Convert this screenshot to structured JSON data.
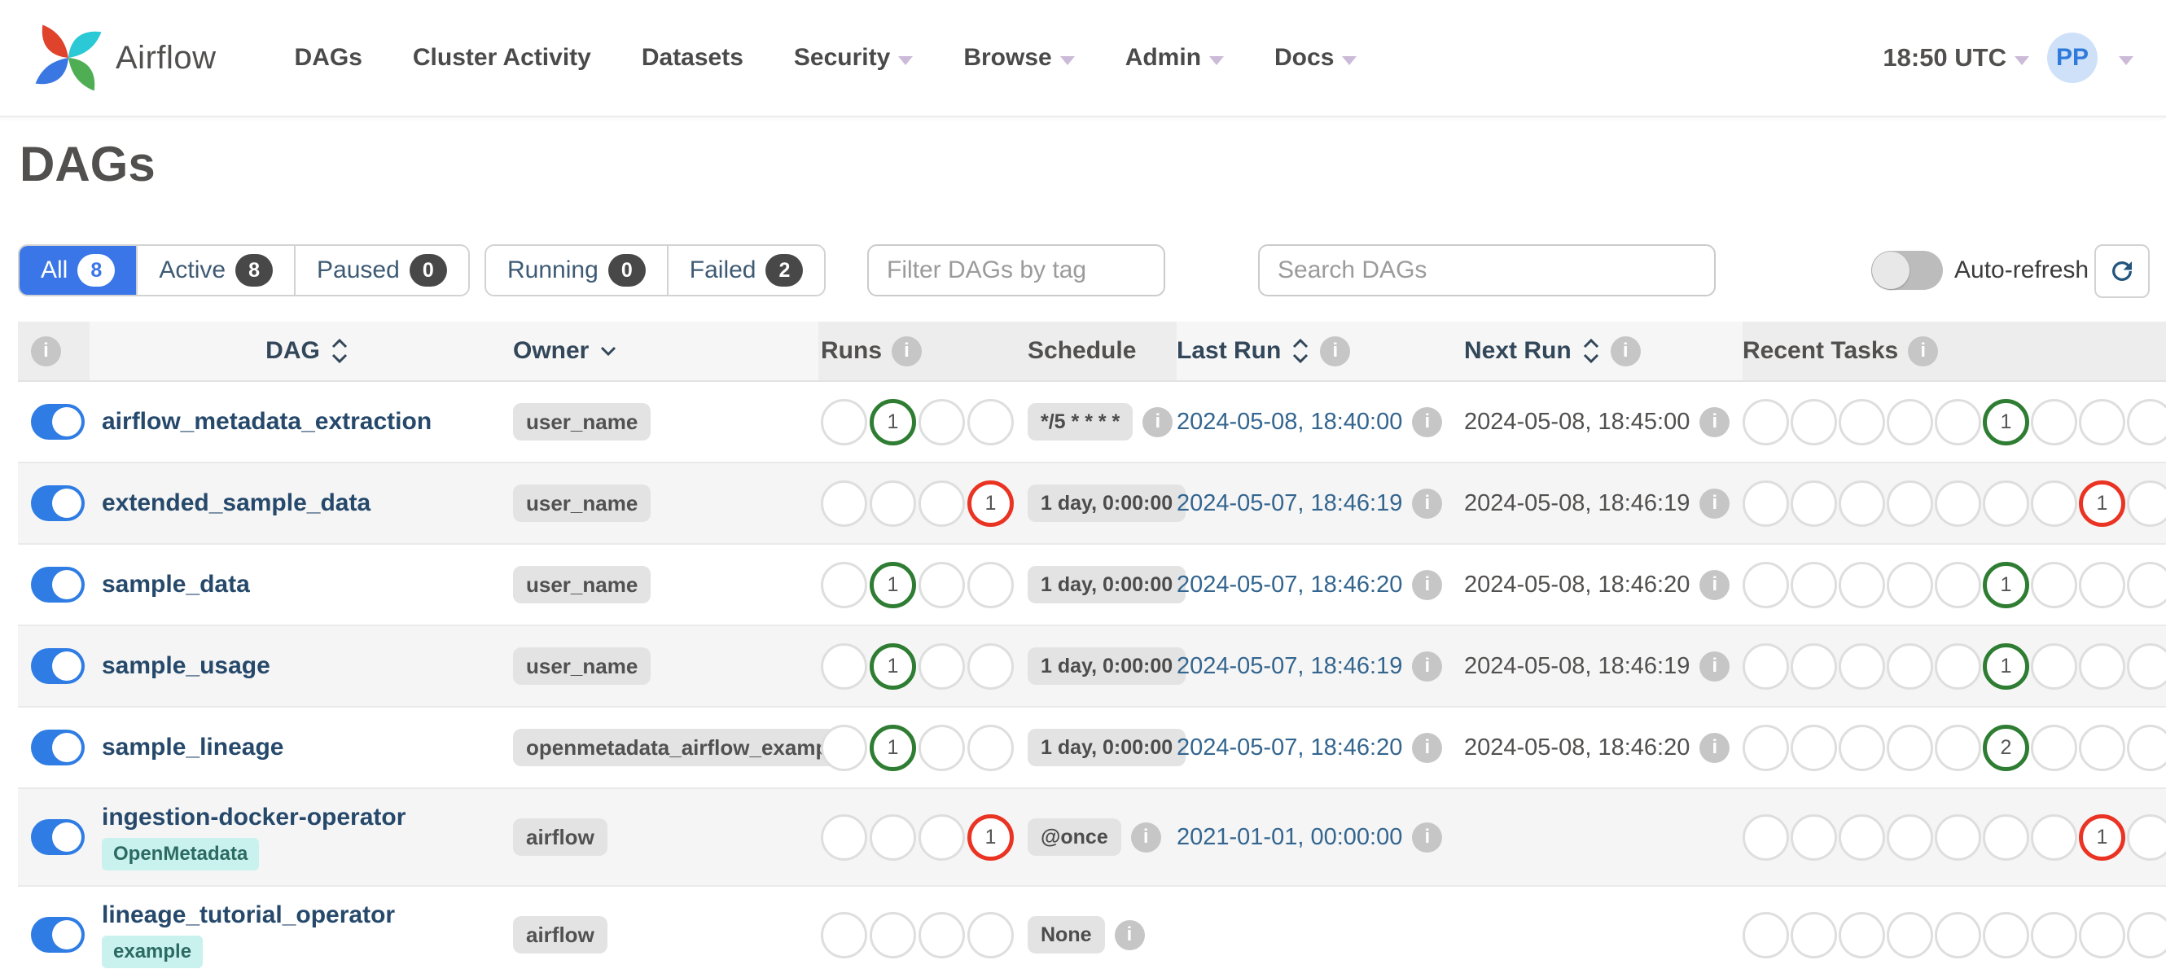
{
  "navbar": {
    "brand": "Airflow",
    "items": [
      {
        "label": "DAGs",
        "has_caret": false
      },
      {
        "label": "Cluster Activity",
        "has_caret": false
      },
      {
        "label": "Datasets",
        "has_caret": false
      },
      {
        "label": "Security",
        "has_caret": true
      },
      {
        "label": "Browse",
        "has_caret": true
      },
      {
        "label": "Admin",
        "has_caret": true
      },
      {
        "label": "Docs",
        "has_caret": true
      }
    ],
    "clock": "18:50 UTC",
    "avatar_initials": "PP"
  },
  "page": {
    "title": "DAGs"
  },
  "filters": {
    "state_group": [
      {
        "label": "All",
        "count": "8",
        "active": true
      },
      {
        "label": "Active",
        "count": "8",
        "active": false
      },
      {
        "label": "Paused",
        "count": "0",
        "active": false
      }
    ],
    "run_group": [
      {
        "label": "Running",
        "count": "0",
        "active": false
      },
      {
        "label": "Failed",
        "count": "2",
        "active": false
      }
    ],
    "tag_filter_placeholder": "Filter DAGs by tag",
    "search_placeholder": "Search DAGs",
    "auto_refresh_label": "Auto-refresh"
  },
  "table": {
    "headers": {
      "dag": "DAG",
      "owner": "Owner",
      "runs": "Runs",
      "schedule": "Schedule",
      "last_run": "Last Run",
      "next_run": "Next Run",
      "recent_tasks": "Recent Tasks"
    },
    "runs_circle_count": 4,
    "recent_circle_count": 13,
    "rows": [
      {
        "name": "airflow_metadata_extraction",
        "tags": [],
        "owner": "user_name",
        "runs_highlight": {
          "index": 1,
          "color": "green",
          "count": "1"
        },
        "schedule": "*/5 * * * *",
        "schedule_info": true,
        "last_run": "2024-05-08, 18:40:00",
        "next_run": "2024-05-08, 18:45:00",
        "recent_highlight": {
          "index": 5,
          "color": "green",
          "count": "1"
        }
      },
      {
        "name": "extended_sample_data",
        "tags": [],
        "owner": "user_name",
        "runs_highlight": {
          "index": 3,
          "color": "red",
          "count": "1"
        },
        "schedule": "1 day, 0:00:00",
        "schedule_info": false,
        "last_run": "2024-05-07, 18:46:19",
        "next_run": "2024-05-08, 18:46:19",
        "recent_highlight": {
          "index": 7,
          "color": "red",
          "count": "1"
        }
      },
      {
        "name": "sample_data",
        "tags": [],
        "owner": "user_name",
        "runs_highlight": {
          "index": 1,
          "color": "green",
          "count": "1"
        },
        "schedule": "1 day, 0:00:00",
        "schedule_info": false,
        "last_run": "2024-05-07, 18:46:20",
        "next_run": "2024-05-08, 18:46:20",
        "recent_highlight": {
          "index": 5,
          "color": "green",
          "count": "1"
        }
      },
      {
        "name": "sample_usage",
        "tags": [],
        "owner": "user_name",
        "runs_highlight": {
          "index": 1,
          "color": "green",
          "count": "1"
        },
        "schedule": "1 day, 0:00:00",
        "schedule_info": false,
        "last_run": "2024-05-07, 18:46:19",
        "next_run": "2024-05-08, 18:46:19",
        "recent_highlight": {
          "index": 5,
          "color": "green",
          "count": "1"
        }
      },
      {
        "name": "sample_lineage",
        "tags": [],
        "owner": "openmetadata_airflow_example",
        "runs_highlight": {
          "index": 1,
          "color": "green",
          "count": "1"
        },
        "schedule": "1 day, 0:00:00",
        "schedule_info": false,
        "last_run": "2024-05-07, 18:46:20",
        "next_run": "2024-05-08, 18:46:20",
        "recent_highlight": {
          "index": 5,
          "color": "green",
          "count": "2"
        }
      },
      {
        "name": "ingestion-docker-operator",
        "tags": [
          "OpenMetadata"
        ],
        "owner": "airflow",
        "runs_highlight": {
          "index": 3,
          "color": "red",
          "count": "1"
        },
        "schedule": "@once",
        "schedule_info": true,
        "last_run": "2021-01-01, 00:00:00",
        "next_run": "",
        "recent_highlight": {
          "index": 7,
          "color": "red",
          "count": "1"
        }
      },
      {
        "name": "lineage_tutorial_operator",
        "tags": [
          "example"
        ],
        "owner": "airflow",
        "runs_highlight": null,
        "schedule": "None",
        "schedule_info": true,
        "last_run": "",
        "next_run": "",
        "recent_highlight": null
      }
    ]
  },
  "colors": {
    "accent_blue": "#3a76e8",
    "toggle_blue": "#2e7ce4",
    "success_green": "#2e7d32",
    "failed_red": "#ea3423",
    "tag_teal_bg": "#c9f2ee",
    "row_stripe": "#f5f5f5"
  }
}
